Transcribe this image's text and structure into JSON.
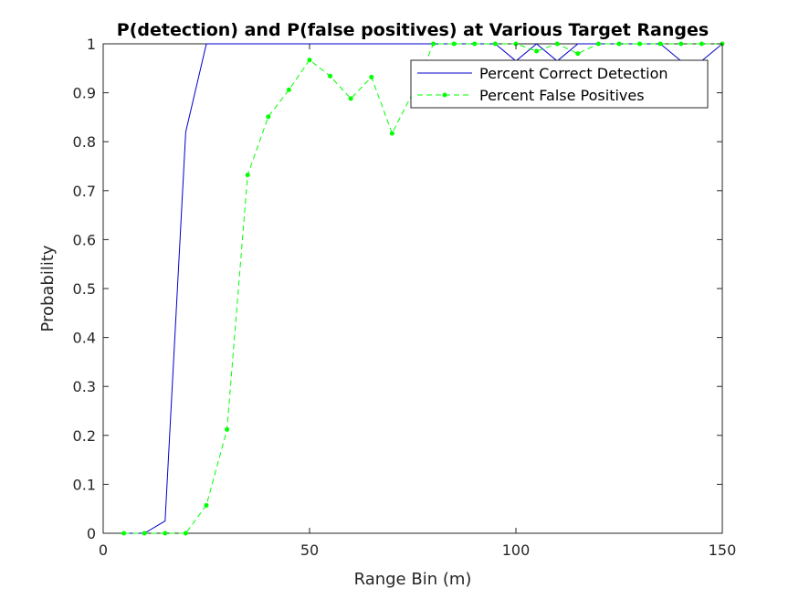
{
  "chart_data": {
    "type": "line",
    "title": "P(detection) and P(false positives) at Various Target Ranges",
    "xlabel": "Range Bin (m)",
    "ylabel": "Probability",
    "xlim": [
      0,
      150
    ],
    "ylim": [
      0,
      1
    ],
    "xticks": [
      0,
      50,
      100,
      150
    ],
    "yticks": [
      0,
      0.1,
      0.2,
      0.3,
      0.4,
      0.5,
      0.6,
      0.7,
      0.8,
      0.9,
      1
    ],
    "xtick_labels": [
      "0",
      "50",
      "100",
      "150"
    ],
    "ytick_labels": [
      "0",
      "0.1",
      "0.2",
      "0.3",
      "0.4",
      "0.5",
      "0.6",
      "0.7",
      "0.8",
      "0.9",
      "1"
    ],
    "grid": false,
    "legend_position": "top-right",
    "series": [
      {
        "name": "Percent Correct Detection",
        "color": "#0000cc",
        "line_style": "solid",
        "marker": "none",
        "x": [
          5,
          10,
          15,
          20,
          25,
          30,
          35,
          40,
          45,
          50,
          55,
          60,
          65,
          70,
          75,
          80,
          85,
          90,
          95,
          100,
          105,
          110,
          115,
          120,
          125,
          130,
          135,
          140,
          145,
          150
        ],
        "y": [
          0,
          0,
          0.025,
          0.82,
          1,
          1,
          1,
          1,
          1,
          1,
          1,
          1,
          1,
          1,
          1,
          1,
          1,
          1,
          1,
          0.965,
          1,
          0.965,
          1,
          1,
          1,
          1,
          1,
          0.965,
          0.965,
          1
        ]
      },
      {
        "name": "Percent False Positives",
        "color": "#00ff00",
        "line_style": "dashed",
        "marker": "dot",
        "x": [
          5,
          10,
          15,
          20,
          25,
          30,
          35,
          40,
          45,
          50,
          55,
          60,
          65,
          70,
          75,
          80,
          85,
          90,
          95,
          100,
          105,
          110,
          115,
          120,
          125,
          130,
          135,
          140,
          145,
          150
        ],
        "y": [
          0,
          0,
          0,
          0,
          0.057,
          0.212,
          0.732,
          0.851,
          0.906,
          0.967,
          0.934,
          0.888,
          0.932,
          0.817,
          0.9,
          1,
          1,
          1,
          1,
          1,
          0.985,
          1,
          0.98,
          1,
          1,
          1,
          1,
          1,
          1,
          1
        ]
      }
    ]
  }
}
